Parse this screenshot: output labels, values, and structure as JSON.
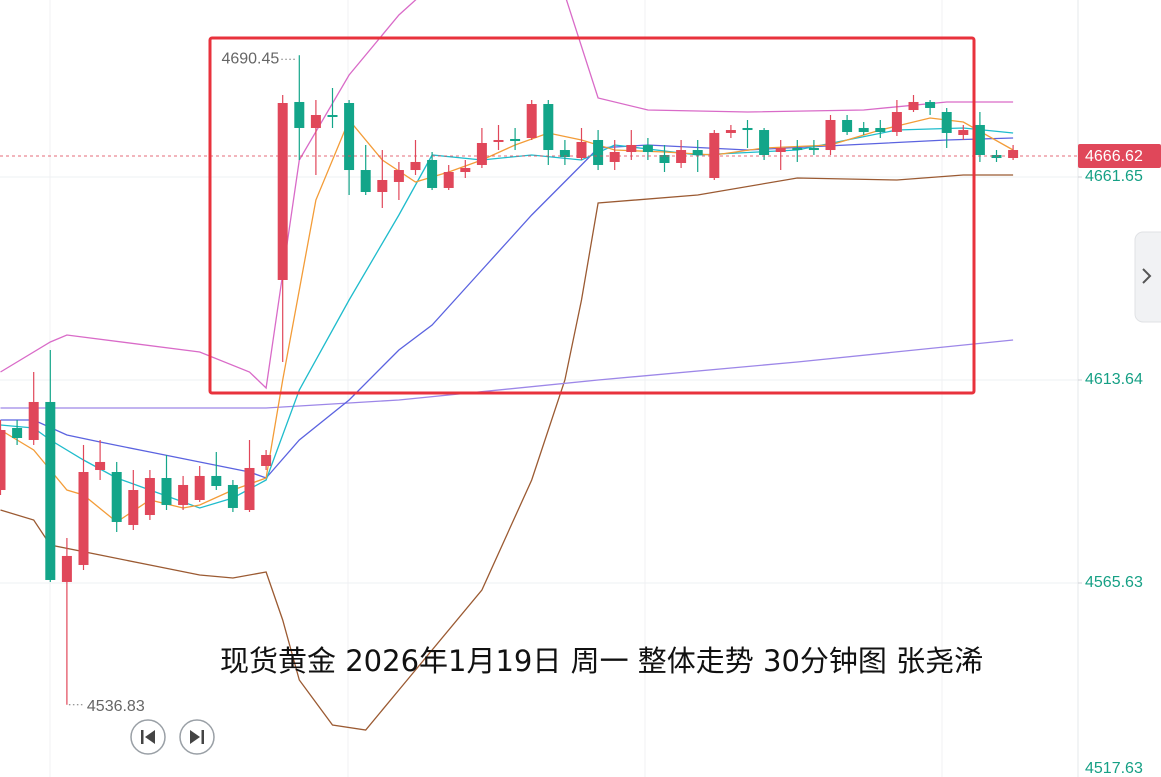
{
  "chart_data": {
    "type": "candlestick",
    "title": "现货黄金 2026年1月19日 周一 整体走势 30分钟图 张尧浠",
    "up_color": "#e0475a",
    "down_color": "#13a589",
    "candles": {
      "open": [
        4587.62,
        4602.29,
        4599.45,
        4608.44,
        4565.87,
        4569.89,
        4592.35,
        4591.88,
        4579.35,
        4581.71,
        4590.46,
        4584.08,
        4585.26,
        4590.94,
        4588.81,
        4582.89,
        4593.3,
        4637.29,
        4679.39,
        4673.24,
        4676.31,
        4679.15,
        4663.3,
        4658.1,
        4660.47,
        4663.3,
        4665.67,
        4659.05,
        4662.83,
        4664.49,
        4669.93,
        4670.64,
        4670.87,
        4678.91,
        4668.03,
        4666.14,
        4670.4,
        4665.2,
        4667.56,
        4669.22,
        4666.85,
        4664.96,
        4668.03,
        4661.41,
        4672.06,
        4673.24,
        4672.76,
        4667.56,
        4668.51,
        4668.51,
        4668.03,
        4675.13,
        4673.24,
        4673.24,
        4672.29,
        4677.49,
        4679.39,
        4677.02,
        4671.58,
        4673.95,
        4666.85,
        4666.14
      ],
      "high": [
        4604.18,
        4604.18,
        4615.53,
        4620.73,
        4576.27,
        4598.27,
        4599.45,
        4594.25,
        4592.35,
        4592.35,
        4595.9,
        4590.94,
        4593.3,
        4596.61,
        4589.99,
        4599.45,
        4597.08,
        4681.04,
        4690.45,
        4679.86,
        4682.7,
        4679.86,
        4669.22,
        4668.03,
        4665.2,
        4670.4,
        4667.56,
        4664.49,
        4665.67,
        4673.24,
        4673.95,
        4673.24,
        4679.86,
        4679.86,
        4670.4,
        4673.24,
        4672.76,
        4670.4,
        4672.76,
        4670.87,
        4669.22,
        4670.4,
        4670.4,
        4672.76,
        4673.95,
        4675.13,
        4673.24,
        4670.4,
        4670.4,
        4670.4,
        4676.31,
        4676.31,
        4674.66,
        4675.13,
        4679.86,
        4681.04,
        4679.86,
        4677.97,
        4673.95,
        4677.02,
        4668.03,
        4669.22
      ],
      "low": [
        4586.44,
        4598.27,
        4598.27,
        4565.87,
        4536.83,
        4568.7,
        4589.99,
        4577.69,
        4578.16,
        4580.53,
        4582.89,
        4582.89,
        4584.79,
        4587.62,
        4582.42,
        4582.42,
        4592.35,
        4617.9,
        4665.67,
        4662.12,
        4673.24,
        4657.39,
        4657.39,
        4654.32,
        4656.21,
        4662.12,
        4658.57,
        4658.57,
        4661.41,
        4663.78,
        4668.03,
        4668.03,
        4670.4,
        4664.49,
        4664.49,
        4665.67,
        4663.3,
        4663.3,
        4665.67,
        4665.67,
        4662.83,
        4663.78,
        4662.83,
        4660.94,
        4670.87,
        4668.51,
        4665.67,
        4663.3,
        4665.2,
        4666.85,
        4666.85,
        4671.58,
        4671.58,
        4670.87,
        4671.35,
        4677.02,
        4676.31,
        4668.51,
        4670.4,
        4665.2,
        4665.2,
        4665.67
      ],
      "close": [
        4601.81,
        4599.92,
        4608.44,
        4566.34,
        4572.02,
        4591.88,
        4594.25,
        4580.06,
        4587.62,
        4590.46,
        4584.08,
        4588.81,
        4590.94,
        4588.57,
        4583.37,
        4592.83,
        4595.9,
        4679.15,
        4673.24,
        4676.31,
        4675.84,
        4663.3,
        4658.1,
        4660.94,
        4663.3,
        4665.2,
        4659.05,
        4662.83,
        4663.78,
        4669.69,
        4670.4,
        4670.16,
        4678.91,
        4668.03,
        4666.38,
        4669.93,
        4664.49,
        4667.56,
        4669.22,
        4667.56,
        4664.96,
        4668.03,
        4666.85,
        4672.06,
        4672.76,
        4672.76,
        4666.85,
        4668.51,
        4668.03,
        4668.03,
        4675.13,
        4672.29,
        4672.29,
        4672.29,
        4677.02,
        4679.39,
        4677.97,
        4672.06,
        4672.76,
        4666.85,
        4666.14,
        4668.03
      ]
    },
    "lines": [
      {
        "color": "#d96bc8",
        "x": [
          0,
          3,
          4,
          12,
          15,
          16,
          18,
          21,
          24,
          29,
          34,
          36,
          39,
          45,
          52,
          57,
          61
        ],
        "values": [
          4615.53,
          4622.63,
          4624.28,
          4620.26,
          4615.53,
          4611.75,
          4665.67,
          4685.77,
          4699.96,
          4717.7,
          4704.69,
          4680.33,
          4677.49,
          4677.02,
          4677.49,
          4679.39,
          4679.39
        ]
      },
      {
        "color": "#9b5a32",
        "x": [
          0,
          2,
          3,
          6,
          9,
          12,
          14,
          16,
          17,
          18,
          20,
          22,
          24,
          29,
          32,
          34,
          35,
          36,
          42,
          48,
          54,
          58,
          61
        ],
        "values": [
          4582.89,
          4580.53,
          4574.62,
          4572.25,
          4569.89,
          4567.52,
          4566.81,
          4568.23,
          4556.88,
          4542.69,
          4532.05,
          4530.86,
          4540.32,
          4563.97,
          4589.99,
          4613.64,
          4632.56,
          4655.5,
          4657.39,
          4661.41,
          4660.94,
          4662.12,
          4662.12
        ]
      },
      {
        "color": "#9d87e8",
        "x": [
          0,
          16,
          24,
          36,
          48,
          61
        ],
        "values": [
          4607.02,
          4607.02,
          4608.91,
          4613.64,
          4617.9,
          4623.1
        ]
      },
      {
        "color": "#5b63e0",
        "x": [
          0,
          2,
          4,
          6,
          9,
          12,
          15,
          16,
          18,
          21,
          24,
          26,
          29,
          32,
          35,
          36,
          39,
          45,
          51,
          57,
          61
        ],
        "values": [
          4604.18,
          4604.18,
          4600.63,
          4598.98,
          4596.61,
          4594.25,
          4591.88,
          4590.46,
          4599.45,
          4608.91,
          4620.73,
          4626.65,
          4639.65,
          4652.66,
          4664.49,
          4668.51,
          4669.22,
          4668.03,
          4669.22,
          4670.4,
          4670.87
        ]
      },
      {
        "color": "#1fbccc",
        "x": [
          0,
          2,
          3,
          5,
          7,
          9,
          12,
          14,
          16,
          18,
          21,
          24,
          26,
          29,
          32,
          35,
          37,
          42,
          48,
          54,
          58,
          61
        ],
        "values": [
          4603.0,
          4602.29,
          4599.45,
          4594.72,
          4590.46,
          4587.62,
          4583.37,
          4585.73,
          4589.99,
          4611.27,
          4632.56,
          4652.66,
          4666.85,
          4665.67,
          4666.85,
          4665.67,
          4669.22,
          4666.85,
          4668.03,
          4672.76,
          4673.24,
          4672.06
        ]
      },
      {
        "color": "#f39c38",
        "x": [
          0,
          2,
          3,
          4,
          5,
          7,
          9,
          11,
          12,
          14,
          16,
          17,
          19,
          21,
          23,
          25,
          27,
          29,
          31,
          33,
          35,
          37,
          40,
          43,
          46,
          50,
          53,
          56,
          58,
          61
        ],
        "values": [
          4601.81,
          4597.08,
          4592.35,
          4587.62,
          4586.44,
          4580.06,
          4585.26,
          4583.37,
          4584.08,
          4587.62,
          4590.46,
          4613.64,
          4656.21,
          4675.13,
          4665.67,
          4660.47,
          4662.83,
          4665.67,
          4669.22,
          4672.06,
          4670.4,
          4668.03,
          4667.56,
          4666.85,
          4668.51,
          4669.22,
          4672.76,
          4675.6,
          4674.66,
          4668.03
        ]
      }
    ],
    "last_price": 4666.62,
    "ylim": [
      4517.38,
      4703.51
    ],
    "yticks": [
      4661.65,
      4613.64,
      4565.63,
      4517.63
    ],
    "grid": true
  }
}
